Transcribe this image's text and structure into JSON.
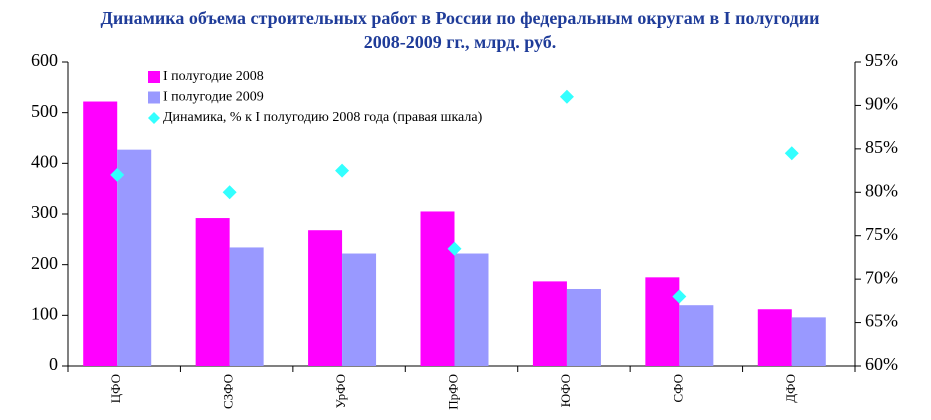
{
  "chart_data": {
    "type": "bar",
    "title": "Динамика объема строительных работ в России по федеральным округам в I полугодии 2008-2009 гг., млрд. руб.",
    "categories": [
      "ЦФО",
      "СЗФО",
      "УрФО",
      "ПрФО",
      "ЮФО",
      "СФО",
      "ДФО"
    ],
    "series": [
      {
        "name": "I полугодие 2008",
        "color": "#ff00ff",
        "type": "bar",
        "values": [
          522,
          292,
          268,
          305,
          167,
          175,
          112
        ]
      },
      {
        "name": "I полугодие 2009",
        "color": "#9999ff",
        "type": "bar",
        "values": [
          427,
          234,
          222,
          222,
          152,
          120,
          96
        ]
      },
      {
        "name": "Динамика, % к I полугодию 2008 года (правая шкала)",
        "color": "#33ffff",
        "type": "scatter",
        "axis": "y2",
        "values": [
          82,
          80,
          82.5,
          73.5,
          91,
          68,
          84.5
        ]
      }
    ],
    "ylim": [
      0,
      600
    ],
    "yticks": [
      0,
      100,
      200,
      300,
      400,
      500,
      600
    ],
    "y2lim": [
      60,
      95
    ],
    "y2ticks": [
      {
        "value": 60,
        "label": "60%"
      },
      {
        "value": 65,
        "label": "65%"
      },
      {
        "value": 70,
        "label": "70%"
      },
      {
        "value": 75,
        "label": "75%"
      },
      {
        "value": 80,
        "label": "80%"
      },
      {
        "value": 85,
        "label": "85%"
      },
      {
        "value": 90,
        "label": "90%"
      },
      {
        "value": 95,
        "label": "95%"
      }
    ],
    "legend": "upper-left"
  }
}
